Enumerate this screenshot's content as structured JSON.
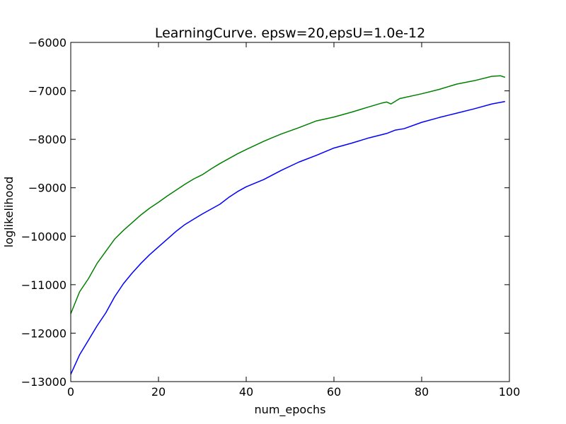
{
  "chart_data": {
    "type": "line",
    "title": "LearningCurve. epsw=20,epsU=1.0e-12",
    "xlabel": "num_epochs",
    "ylabel": "loglikelihood",
    "xlim": [
      0,
      100
    ],
    "ylim": [
      -13000,
      -6000
    ],
    "xticks": [
      0,
      20,
      40,
      60,
      80,
      100
    ],
    "yticks": [
      -13000,
      -12000,
      -11000,
      -10000,
      -9000,
      -8000,
      -7000,
      -6000
    ],
    "xtick_labels": [
      "0",
      "20",
      "40",
      "60",
      "80",
      "100"
    ],
    "ytick_labels": [
      "−13000",
      "−12000",
      "−11000",
      "−10000",
      "−9000",
      "−8000",
      "−7000",
      "−6000"
    ],
    "grid": false,
    "legend": "none",
    "series": [
      {
        "color": "#0000ff",
        "x": [
          0,
          2,
          4,
          6,
          8,
          10,
          12,
          14,
          16,
          18,
          20,
          22,
          24,
          26,
          28,
          30,
          32,
          34,
          36,
          38,
          40,
          44,
          48,
          52,
          56,
          60,
          64,
          68,
          72,
          74,
          76,
          80,
          84,
          88,
          92,
          96,
          99
        ],
        "values": [
          -12850,
          -12450,
          -12150,
          -11850,
          -11580,
          -11250,
          -10980,
          -10760,
          -10560,
          -10380,
          -10220,
          -10060,
          -9900,
          -9760,
          -9650,
          -9540,
          -9440,
          -9340,
          -9200,
          -9080,
          -8980,
          -8830,
          -8640,
          -8470,
          -8330,
          -8180,
          -8080,
          -7970,
          -7880,
          -7810,
          -7780,
          -7650,
          -7550,
          -7460,
          -7370,
          -7270,
          -7220
        ]
      },
      {
        "color": "#008000",
        "x": [
          0,
          2,
          4,
          6,
          8,
          10,
          12,
          14,
          16,
          18,
          20,
          22,
          24,
          26,
          28,
          30,
          32,
          34,
          36,
          38,
          40,
          44,
          48,
          52,
          56,
          60,
          64,
          68,
          71,
          72,
          73,
          75,
          80,
          84,
          88,
          92,
          96,
          98,
          99
        ],
        "values": [
          -11600,
          -11150,
          -10880,
          -10560,
          -10310,
          -10060,
          -9880,
          -9720,
          -9560,
          -9420,
          -9300,
          -9170,
          -9050,
          -8930,
          -8820,
          -8730,
          -8610,
          -8500,
          -8400,
          -8300,
          -8210,
          -8040,
          -7890,
          -7760,
          -7620,
          -7540,
          -7440,
          -7330,
          -7250,
          -7230,
          -7270,
          -7160,
          -7060,
          -6970,
          -6860,
          -6790,
          -6700,
          -6690,
          -6720
        ]
      }
    ]
  }
}
